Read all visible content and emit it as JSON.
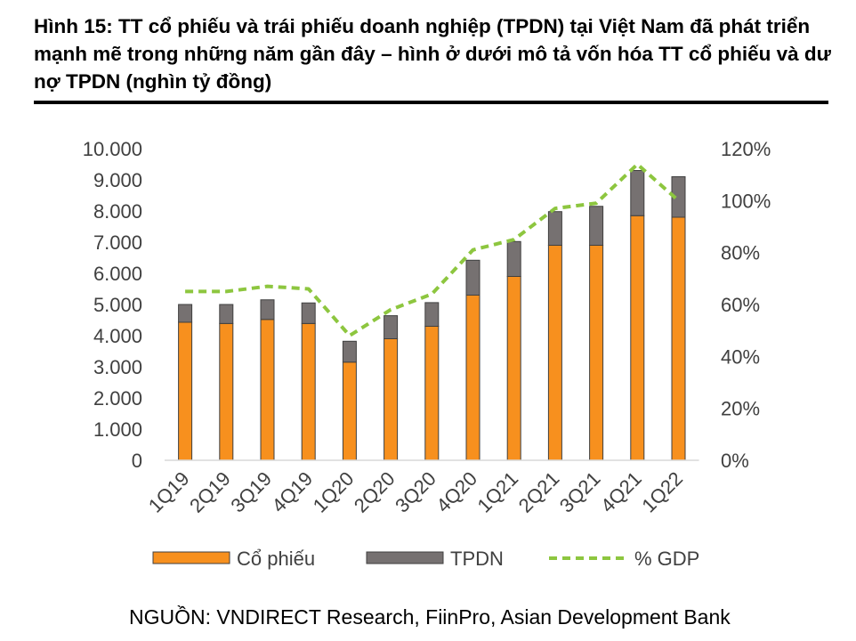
{
  "title": "Hình 15: TT cổ phiếu và trái phiếu doanh nghiệp (TPDN) tại Việt Nam đã phát triển mạnh mẽ trong những năm gần đây – hình ở dưới mô tả vốn hóa TT cổ phiếu và dư nợ TPDN (nghìn tỷ đồng)",
  "source": "NGUỒN: VNDIRECT Research, FiinPro, Asian Development Bank",
  "colors": {
    "stock": "#F7901E",
    "tpdn": "#767171",
    "gdp": "#8DC63F",
    "axis": "#D9D9D9"
  },
  "chart_data": {
    "type": "bar",
    "stacked": true,
    "categories": [
      "1Q19",
      "2Q19",
      "3Q19",
      "4Q19",
      "1Q20",
      "2Q20",
      "3Q20",
      "4Q20",
      "1Q21",
      "2Q21",
      "3Q21",
      "4Q21",
      "1Q22"
    ],
    "series": [
      {
        "name": "Cổ phiếu",
        "kind": "bar",
        "axis": "left",
        "values": [
          4430,
          4390,
          4520,
          4390,
          3150,
          3900,
          4300,
          5300,
          5900,
          6900,
          6900,
          7850,
          7800
        ]
      },
      {
        "name": "TPDN",
        "kind": "bar",
        "axis": "left",
        "values": [
          570,
          610,
          630,
          660,
          670,
          740,
          760,
          1120,
          1120,
          1080,
          1250,
          1450,
          1300
        ]
      },
      {
        "name": "% GDP",
        "kind": "line",
        "style": "dashed",
        "axis": "right",
        "values": [
          65,
          65,
          67,
          66,
          48,
          58,
          64,
          81,
          85,
          97,
          99,
          114,
          100
        ]
      }
    ],
    "y_left": {
      "min": 0,
      "max": 10000,
      "step": 1000,
      "tick_labels": [
        "0",
        "1.000",
        "2.000",
        "3.000",
        "4.000",
        "5.000",
        "6.000",
        "7.000",
        "8.000",
        "9.000",
        "10.000"
      ]
    },
    "y_right": {
      "min": 0,
      "max": 120,
      "step": 20,
      "tick_labels": [
        "0%",
        "20%",
        "40%",
        "60%",
        "80%",
        "100%",
        "120%"
      ]
    },
    "grid": false,
    "legend_position": "bottom",
    "legend": [
      "Cổ phiếu",
      "TPDN",
      "% GDP"
    ]
  }
}
